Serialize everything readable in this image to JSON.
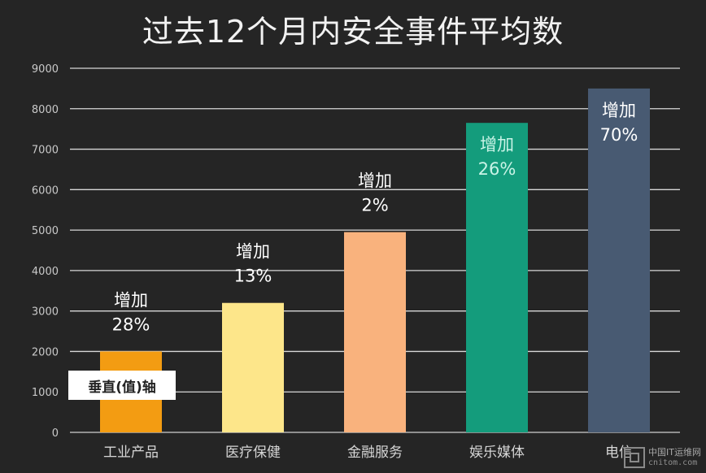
{
  "chart_data": {
    "type": "bar",
    "title": "过去12个月内安全事件平均数",
    "categories": [
      "工业产品",
      "医疗保健",
      "金融服务",
      "娱乐媒体",
      "电信"
    ],
    "values": [
      2000,
      3200,
      4950,
      7650,
      8500
    ],
    "bar_labels": [
      [
        "增加",
        "28%"
      ],
      [
        "增加",
        "13%"
      ],
      [
        "增加",
        "2%"
      ],
      [
        "增加",
        "26%"
      ],
      [
        "增加",
        "70%"
      ]
    ],
    "bar_colors": [
      "#f39c12",
      "#fde68a",
      "#f9b27d",
      "#149c7c",
      "#485a72"
    ],
    "label_colors": [
      "#ffffff",
      "#ffffff",
      "#ffffff",
      "#c9f3e6",
      "#ffffff"
    ],
    "ylim": [
      0,
      9000
    ],
    "yticks": [
      0,
      1000,
      2000,
      3000,
      4000,
      5000,
      6000,
      7000,
      8000,
      9000
    ],
    "grid": true,
    "axis_tag": "垂直(值)轴"
  },
  "watermark": {
    "cn": "中国IT运维网",
    "en": "cnitom.com"
  }
}
